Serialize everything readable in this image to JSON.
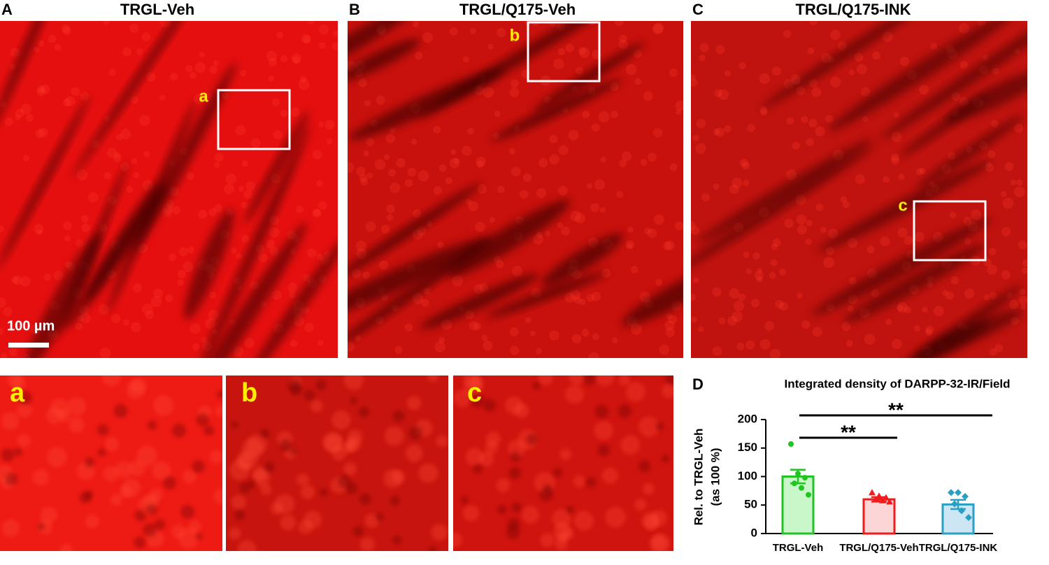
{
  "panels": [
    {
      "letter": "A",
      "title": "TRGL-Veh",
      "inset": "a"
    },
    {
      "letter": "B",
      "title": "TRGL/Q175-Veh",
      "inset": "b"
    },
    {
      "letter": "C",
      "title": "TRGL/Q175-INK",
      "inset": "c"
    }
  ],
  "scale_bar": "100 µm",
  "chart_data": {
    "type": "bar",
    "panel_letter": "D",
    "title": "Integrated density of DARPP-32-IR/Field",
    "ylabel": [
      "Rel. to TRGL-Veh",
      "(as 100 %)"
    ],
    "categories": [
      "TRGL-Veh",
      "TRGL/Q175-Veh",
      "TRGL/Q175-INK"
    ],
    "values": [
      100,
      60,
      51
    ],
    "errors": [
      12,
      4,
      8
    ],
    "points": [
      [
        157,
        105,
        98,
        88,
        80,
        68
      ],
      [
        72,
        66,
        63,
        60,
        58,
        56
      ],
      [
        72,
        72,
        65,
        52,
        40,
        28
      ]
    ],
    "markers": [
      "circle",
      "triangle",
      "diamond"
    ],
    "colors": [
      "#22c322",
      "#ee1c1c",
      "#2a9fc4"
    ],
    "fills": [
      "#c9f7c9",
      "#fcd6d6",
      "#cde6f3"
    ],
    "significance": [
      {
        "from": 0,
        "to": 2,
        "label": "**"
      },
      {
        "from": 0,
        "to": 1,
        "label": "**"
      }
    ],
    "ylim": [
      0,
      200
    ],
    "yticks": [
      0,
      50,
      100,
      150,
      200
    ]
  }
}
